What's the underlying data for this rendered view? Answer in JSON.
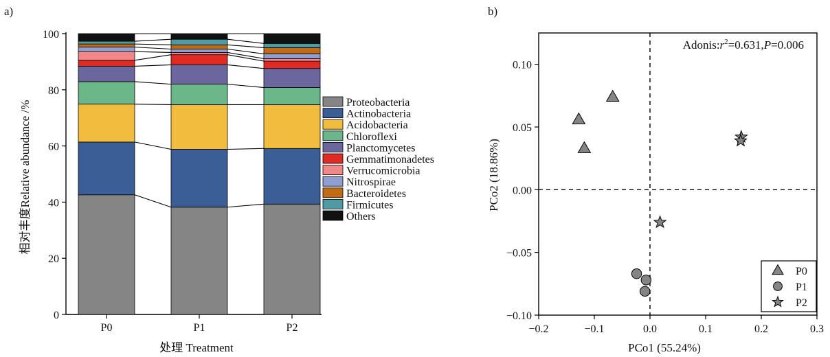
{
  "panel_labels": {
    "a": "a)",
    "b": "b)"
  },
  "chart_data": [
    {
      "type": "bar",
      "subtype": "stacked-100",
      "categories": [
        "P0",
        "P1",
        "P2"
      ],
      "xlabel": "处理 Treatment",
      "ylabel": "相对丰度Relative abundance /%",
      "ylim": [
        0,
        100
      ],
      "yticks": [
        0,
        20,
        40,
        60,
        80,
        100
      ],
      "legend_position": "right",
      "series": [
        {
          "name": "Proteobacteria",
          "color": "#858585",
          "values": [
            42.6,
            38.2,
            39.3
          ]
        },
        {
          "name": "Actinobacteria",
          "color": "#3b5e96",
          "values": [
            18.8,
            20.6,
            19.8
          ]
        },
        {
          "name": "Acidobacteria",
          "color": "#f2bd3f",
          "values": [
            13.5,
            15.9,
            15.6
          ]
        },
        {
          "name": "Chloroflexi",
          "color": "#6cb78a",
          "values": [
            8.0,
            7.3,
            6.1
          ]
        },
        {
          "name": "Planctomycetes",
          "color": "#6c669e",
          "values": [
            5.5,
            6.9,
            6.8
          ]
        },
        {
          "name": "Gemmatimonadetes",
          "color": "#e02a24",
          "values": [
            2.1,
            3.6,
            2.6
          ]
        },
        {
          "name": "Verrucomicrobia",
          "color": "#f2878a",
          "values": [
            3.1,
            0.8,
            0.9
          ]
        },
        {
          "name": "Nitrospirae",
          "color": "#8f9fd2",
          "values": [
            1.6,
            1.2,
            1.7
          ]
        },
        {
          "name": "Bacteroidetes",
          "color": "#c26b16",
          "values": [
            1.1,
            1.5,
            2.2
          ]
        },
        {
          "name": "Firmicutes",
          "color": "#4f9aa3",
          "values": [
            1.0,
            2.0,
            1.5
          ]
        },
        {
          "name": "Others",
          "color": "#111111",
          "values": [
            2.7,
            2.0,
            3.5
          ]
        }
      ]
    },
    {
      "type": "scatter",
      "xlabel": "PCo1 (55.24%)",
      "ylabel": "PCo2 (18.86%)",
      "xlim": [
        -0.2,
        0.3
      ],
      "ylim": [
        -0.1,
        0.125
      ],
      "xticks": [
        -0.2,
        -0.1,
        0.0,
        0.1,
        0.2,
        0.3
      ],
      "xtick_labels": [
        "−0.2",
        "−0.1",
        "0.0",
        "0.1",
        "0.2",
        "0.3"
      ],
      "yticks": [
        -0.1,
        -0.05,
        0.0,
        0.05,
        0.1
      ],
      "ytick_labels": [
        "−0.10",
        "−0.05",
        "0.00",
        "0.05",
        "0.10"
      ],
      "annotation": {
        "prefix": "Adonis:",
        "r_symbol": "r",
        "r_exp": "2",
        "r_value": "=0.631,",
        "p_symbol": "P",
        "p_value": "=0.006"
      },
      "reference_lines": {
        "x": 0,
        "y": 0,
        "style": "dashed"
      },
      "legend_position": "bottom-right",
      "marker_color": "#858585",
      "series": [
        {
          "name": "P0",
          "marker": "triangle",
          "points": [
            {
              "x": -0.067,
              "y": 0.074
            },
            {
              "x": -0.128,
              "y": 0.056
            },
            {
              "x": -0.118,
              "y": 0.033
            }
          ]
        },
        {
          "name": "P1",
          "marker": "circle",
          "points": [
            {
              "x": -0.024,
              "y": -0.067
            },
            {
              "x": -0.007,
              "y": -0.072
            },
            {
              "x": -0.009,
              "y": -0.081
            }
          ]
        },
        {
          "name": "P2",
          "marker": "star",
          "points": [
            {
              "x": 0.164,
              "y": 0.042
            },
            {
              "x": 0.163,
              "y": 0.039
            },
            {
              "x": 0.018,
              "y": -0.026
            }
          ]
        }
      ]
    }
  ]
}
